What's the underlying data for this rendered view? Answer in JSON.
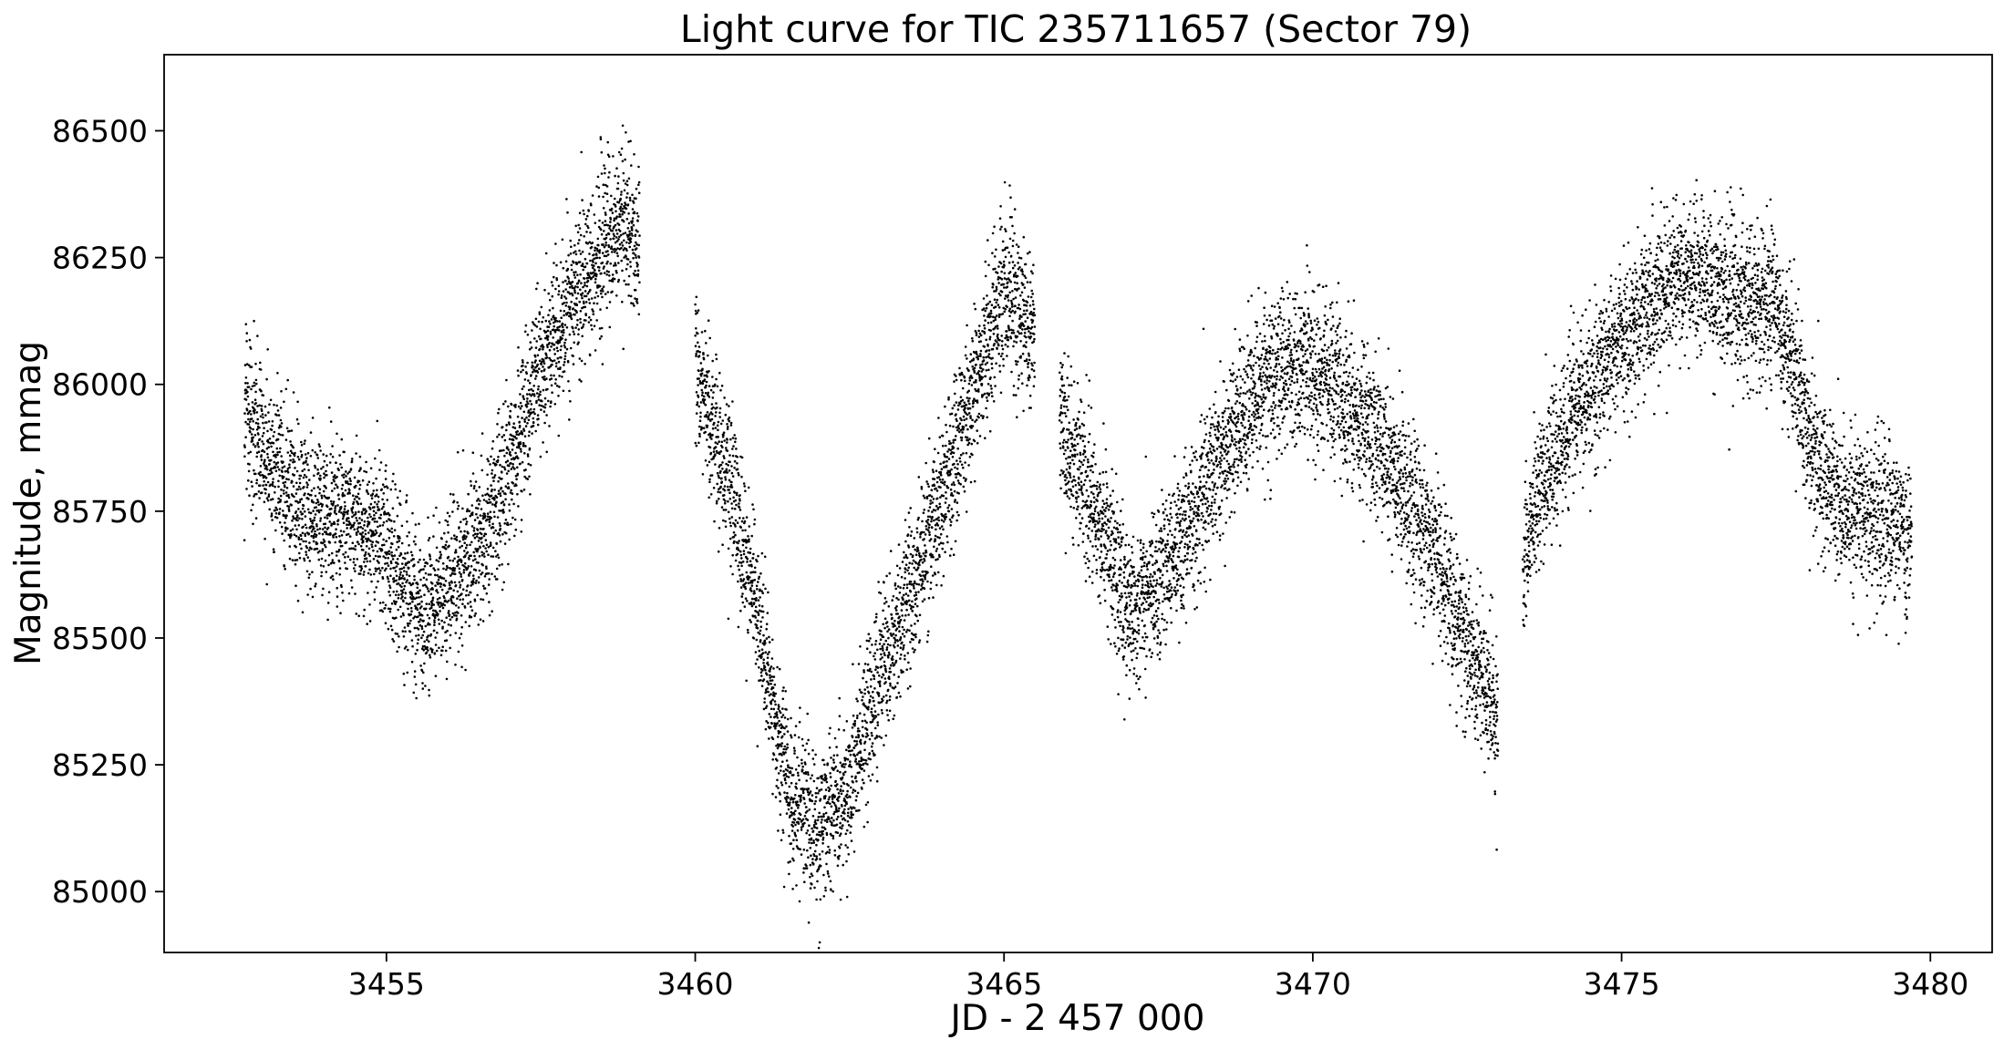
{
  "chart_data": {
    "type": "scatter",
    "title": "Light curve for TIC 235711657 (Sector 79)",
    "xlabel": "JD - 2 457 000",
    "ylabel": "Magnitude, mmag",
    "xlim": [
      3451.4,
      3481.0
    ],
    "ylim": [
      84880,
      86650
    ],
    "y_inverted": false,
    "grid": false,
    "legend": "none",
    "marker_color": "#000000",
    "xticks": [
      3455,
      3460,
      3465,
      3470,
      3475,
      3480
    ],
    "xtick_labels": [
      "3455",
      "3460",
      "3465",
      "3470",
      "3475",
      "3480"
    ],
    "yticks": [
      85000,
      85250,
      85500,
      85750,
      86000,
      86250,
      86500
    ],
    "ytick_labels": [
      "85000",
      "85250",
      "85500",
      "85750",
      "86000",
      "86250",
      "86500"
    ],
    "trend": {
      "x": [
        3452.7,
        3453.0,
        3453.5,
        3454.0,
        3454.5,
        3455.0,
        3455.3,
        3455.6,
        3456.0,
        3456.5,
        3457.0,
        3457.5,
        3458.0,
        3458.5,
        3458.8,
        3459.1,
        3459.4,
        3460.0,
        3460.5,
        3461.0,
        3461.3,
        3461.6,
        3462.0,
        3462.5,
        3463.0,
        3463.5,
        3464.0,
        3464.5,
        3465.0,
        3465.5,
        3465.6,
        3465.9,
        3466.5,
        3467.0,
        3467.5,
        3468.0,
        3468.5,
        3469.0,
        3469.5,
        3470.0,
        3470.5,
        3471.0,
        3471.5,
        3472.0,
        3472.5,
        3473.0,
        3473.1,
        3473.4,
        3473.6,
        3474.0,
        3474.5,
        3475.0,
        3475.5,
        3476.0,
        3476.5,
        3477.0,
        3477.5,
        3477.8,
        3478.2,
        3478.5,
        3479.0,
        3479.5,
        3479.7
      ],
      "y": [
        85960,
        85880,
        85790,
        85730,
        85730,
        85690,
        85610,
        85550,
        85610,
        85680,
        85830,
        86040,
        86150,
        86260,
        86340,
        86260,
        null,
        86020,
        85840,
        85550,
        85330,
        85170,
        85120,
        85210,
        85440,
        85600,
        85780,
        85980,
        86180,
        86100,
        null,
        85930,
        85740,
        85550,
        85610,
        85720,
        85850,
        85970,
        86030,
        86040,
        85970,
        85900,
        85800,
        85660,
        85480,
        85360,
        null,
        85620,
        85760,
        85900,
        86000,
        86080,
        86160,
        86230,
        86200,
        86160,
        86140,
        86020,
        85820,
        85760,
        85750,
        85720,
        85700
      ],
      "noise_std_mmag": 75
    },
    "points_total": 13000
  }
}
